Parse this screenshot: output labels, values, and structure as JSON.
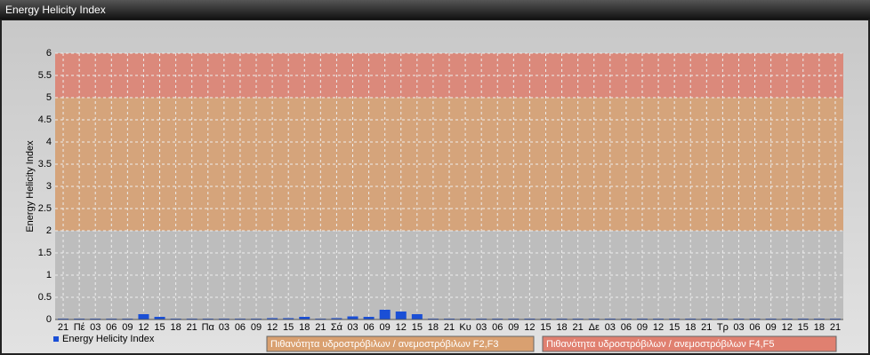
{
  "chart_data": {
    "type": "bar",
    "title": "Energy Helicity Index",
    "ylabel": "Energy Helicity Index",
    "categories": [
      "21",
      "Πέ",
      "03",
      "06",
      "09",
      "12",
      "15",
      "18",
      "21",
      "Πα",
      "03",
      "06",
      "09",
      "12",
      "15",
      "18",
      "21",
      "Σά",
      "03",
      "06",
      "09",
      "12",
      "15",
      "18",
      "21",
      "Κυ",
      "03",
      "06",
      "09",
      "12",
      "15",
      "18",
      "21",
      "Δε",
      "03",
      "06",
      "09",
      "12",
      "15",
      "18",
      "21",
      "Τρ",
      "03",
      "06",
      "09",
      "12",
      "15",
      "18",
      "21"
    ],
    "series": [
      {
        "name": "Energy Helicity Index",
        "color": "#1a4fd6",
        "values": [
          0.02,
          0.02,
          0.02,
          0.02,
          0.02,
          0.12,
          0.06,
          0.02,
          0.02,
          0.02,
          0.02,
          0.02,
          0.02,
          0.03,
          0.03,
          0.06,
          0.02,
          0.03,
          0.07,
          0.06,
          0.22,
          0.18,
          0.12,
          0.02,
          0.02,
          0.02,
          0.02,
          0.02,
          0.02,
          0.02,
          0.02,
          0.02,
          0.02,
          0.02,
          0.02,
          0.02,
          0.02,
          0.02,
          0.02,
          0.02,
          0.02,
          0.02,
          0.02,
          0.02,
          0.02,
          0.02,
          0.02,
          0.02,
          0.02
        ]
      }
    ],
    "bands": [
      {
        "from": 2,
        "to": 5,
        "color": "#d9a070",
        "name": "Πιθανότητα υδροστρόβιλων / ανεμοστρόβιλων F2,F3"
      },
      {
        "from": 5,
        "to": 6,
        "color": "#e08070",
        "name": "Πιθανότητα υδροστρόβιλων / ανεμοστρόβιλων F4,F5"
      }
    ],
    "ylim": [
      0,
      6
    ],
    "yticks": [
      0,
      0.5,
      1,
      1.5,
      2,
      2.5,
      3,
      3.5,
      4,
      4.5,
      5,
      5.5,
      6
    ],
    "grid": true
  }
}
